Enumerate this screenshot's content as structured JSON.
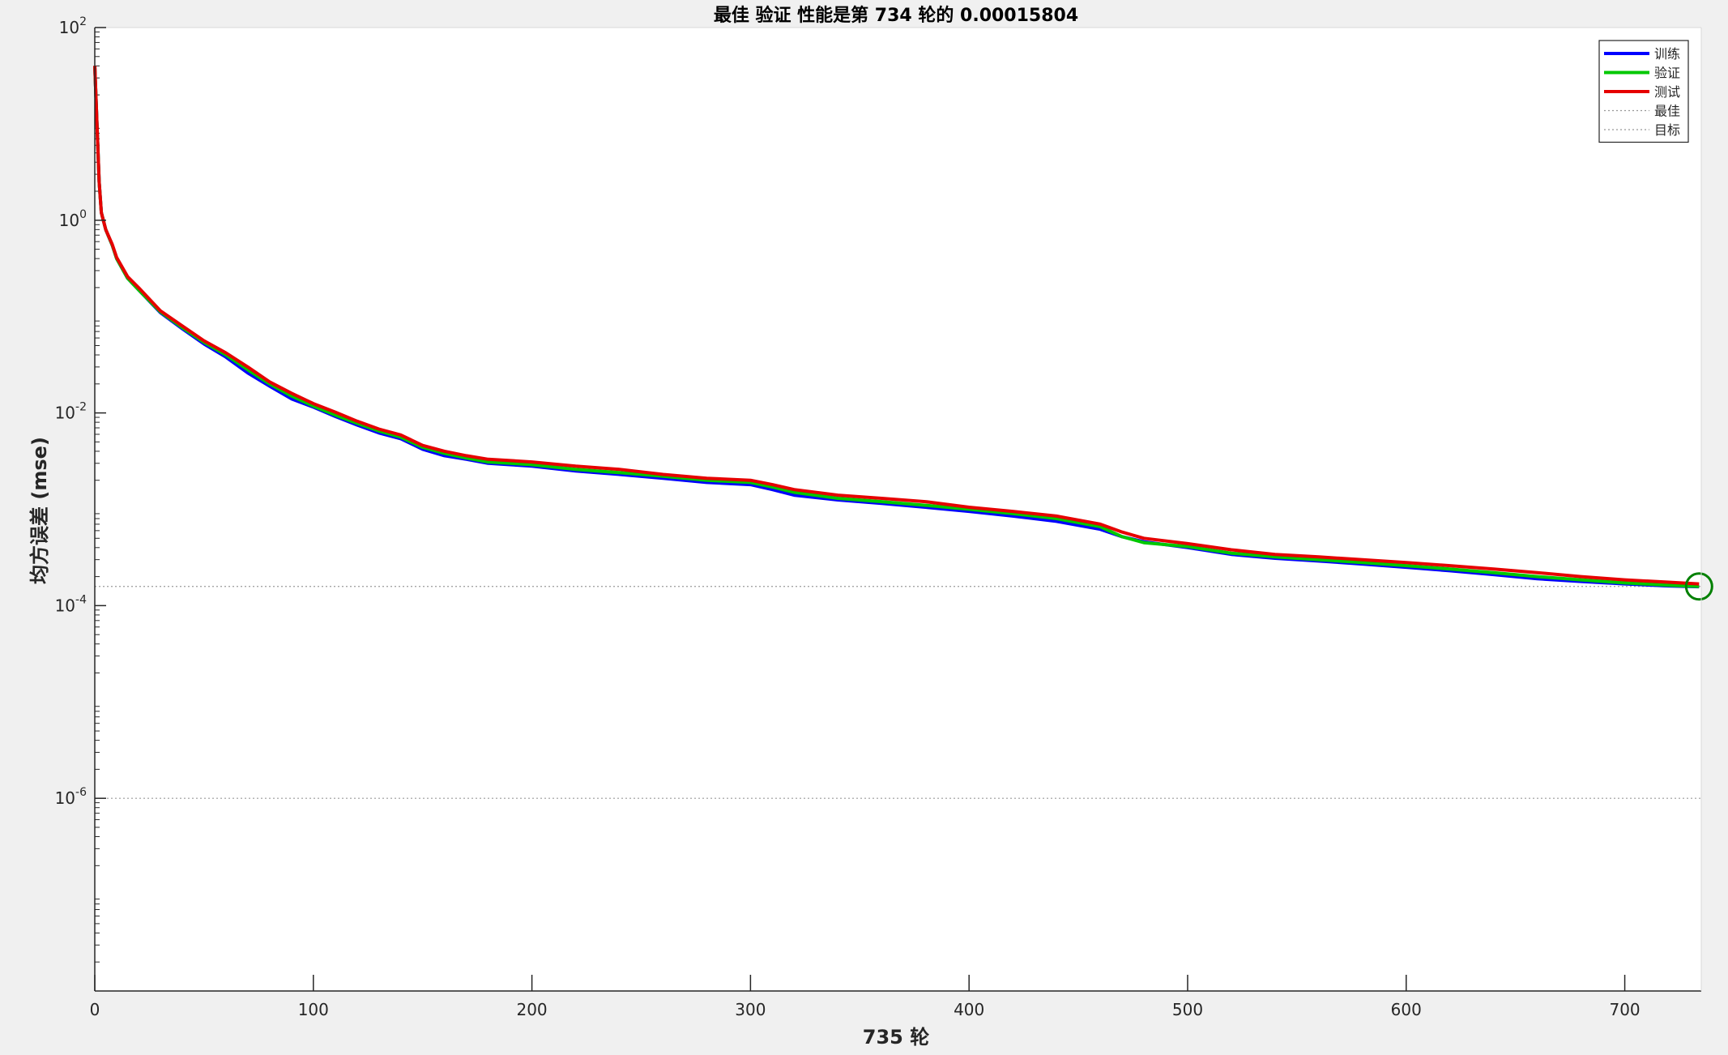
{
  "chart_data": {
    "type": "line",
    "title": "最佳 验证 性能是第 734 轮的 0.00015804",
    "xlabel": "735 轮",
    "ylabel": "均方误差 (mse)",
    "xlim": [
      0,
      735
    ],
    "ylim": [
      1e-08,
      100
    ],
    "yscale": "log",
    "xticks": [
      0,
      100,
      200,
      300,
      400,
      500,
      600,
      700
    ],
    "yticks": [
      1e-06,
      0.0001,
      0.01,
      1,
      100
    ],
    "ytick_labels": [
      {
        "base": "10",
        "exp": "-6"
      },
      {
        "base": "10",
        "exp": "-4"
      },
      {
        "base": "10",
        "exp": "-2"
      },
      {
        "base": "10",
        "exp": "0"
      },
      {
        "base": "10",
        "exp": "2"
      }
    ],
    "grid": false,
    "legend_position": "top-right",
    "best": {
      "epoch": 734,
      "value": 0.00015804
    },
    "goal": 1e-06,
    "series": [
      {
        "name": "训练",
        "color": "#0000ff",
        "x": [
          0,
          1,
          2,
          3,
          5,
          8,
          10,
          15,
          20,
          30,
          40,
          50,
          60,
          70,
          80,
          90,
          100,
          110,
          120,
          130,
          140,
          150,
          160,
          170,
          180,
          190,
          200,
          220,
          240,
          260,
          280,
          300,
          310,
          320,
          340,
          360,
          380,
          400,
          420,
          440,
          460,
          470,
          480,
          500,
          520,
          540,
          560,
          580,
          600,
          620,
          640,
          660,
          680,
          700,
          720,
          734
        ],
        "y": [
          40,
          10,
          2.5,
          1.2,
          0.8,
          0.55,
          0.4,
          0.25,
          0.19,
          0.11,
          0.075,
          0.052,
          0.038,
          0.026,
          0.019,
          0.014,
          0.0115,
          0.0092,
          0.0075,
          0.0062,
          0.0054,
          0.0042,
          0.0036,
          0.0033,
          0.003,
          0.0029,
          0.0028,
          0.0025,
          0.0023,
          0.0021,
          0.0019,
          0.0018,
          0.0016,
          0.0014,
          0.00125,
          0.00115,
          0.00105,
          0.00095,
          0.00085,
          0.00075,
          0.00062,
          0.00052,
          0.00046,
          0.0004,
          0.00034,
          0.00031,
          0.00029,
          0.00027,
          0.00025,
          0.00023,
          0.00021,
          0.00019,
          0.000178,
          0.000168,
          0.00016,
          0.000157
        ]
      },
      {
        "name": "验证",
        "color": "#00c800",
        "x": [
          0,
          1,
          2,
          3,
          5,
          8,
          10,
          15,
          20,
          30,
          40,
          50,
          60,
          70,
          80,
          90,
          100,
          110,
          120,
          130,
          140,
          150,
          160,
          170,
          180,
          190,
          200,
          220,
          240,
          260,
          280,
          300,
          310,
          320,
          340,
          360,
          380,
          400,
          420,
          440,
          460,
          470,
          480,
          500,
          520,
          540,
          560,
          580,
          600,
          620,
          640,
          660,
          680,
          700,
          720,
          734
        ],
        "y": [
          40,
          10,
          2.5,
          1.2,
          0.8,
          0.55,
          0.4,
          0.25,
          0.19,
          0.112,
          0.077,
          0.054,
          0.04,
          0.028,
          0.02,
          0.015,
          0.0118,
          0.0095,
          0.0078,
          0.0065,
          0.0056,
          0.0044,
          0.0038,
          0.0034,
          0.0031,
          0.003,
          0.0029,
          0.0026,
          0.0024,
          0.0022,
          0.002,
          0.0019,
          0.0017,
          0.0015,
          0.0013,
          0.0012,
          0.0011,
          0.001,
          0.0009,
          0.0008,
          0.00066,
          0.00052,
          0.00045,
          0.00041,
          0.00035,
          0.00032,
          0.0003,
          0.00028,
          0.00026,
          0.00024,
          0.00022,
          0.0002,
          0.000185,
          0.000172,
          0.000163,
          0.000158
        ]
      },
      {
        "name": "测试",
        "color": "#e60000",
        "x": [
          0,
          1,
          2,
          3,
          5,
          8,
          10,
          15,
          20,
          30,
          40,
          50,
          60,
          70,
          80,
          90,
          100,
          110,
          120,
          130,
          140,
          150,
          160,
          170,
          180,
          190,
          200,
          220,
          240,
          260,
          280,
          300,
          310,
          320,
          340,
          360,
          380,
          400,
          420,
          440,
          460,
          470,
          480,
          500,
          520,
          540,
          560,
          580,
          600,
          620,
          640,
          660,
          680,
          700,
          720,
          734
        ],
        "y": [
          40,
          10,
          2.5,
          1.2,
          0.8,
          0.56,
          0.41,
          0.26,
          0.2,
          0.115,
          0.08,
          0.056,
          0.042,
          0.03,
          0.021,
          0.016,
          0.0125,
          0.0102,
          0.0082,
          0.0068,
          0.0059,
          0.0046,
          0.004,
          0.0036,
          0.0033,
          0.0032,
          0.0031,
          0.0028,
          0.0026,
          0.0023,
          0.0021,
          0.002,
          0.0018,
          0.0016,
          0.0014,
          0.0013,
          0.0012,
          0.00105,
          0.00095,
          0.00085,
          0.0007,
          0.00058,
          0.0005,
          0.00044,
          0.00038,
          0.00034,
          0.00032,
          0.0003,
          0.00028,
          0.00026,
          0.00024,
          0.00022,
          0.0002,
          0.000185,
          0.000175,
          0.000168
        ]
      },
      {
        "name": "最佳",
        "color": "#969696",
        "style": "dotted"
      },
      {
        "name": "目标",
        "color": "#969696",
        "style": "dotted"
      }
    ]
  }
}
